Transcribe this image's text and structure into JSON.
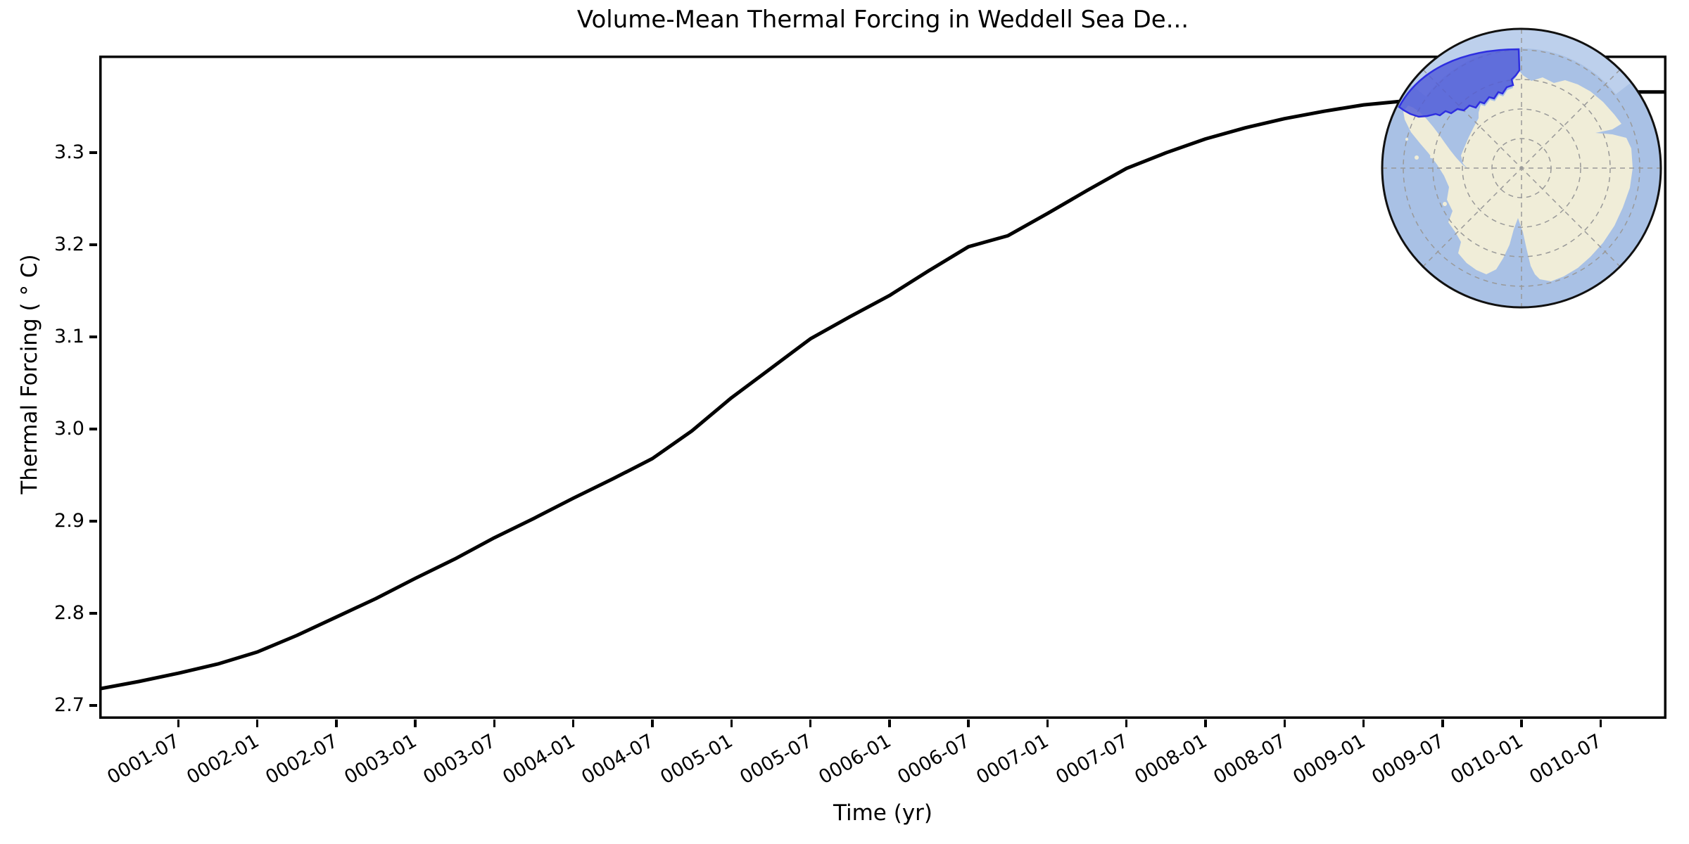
{
  "chart_data": {
    "type": "line",
    "title": "Volume-Mean Thermal Forcing in Weddell Sea De...",
    "xlabel": "Time (yr)",
    "ylabel": "Thermal Forcing ( ° C)",
    "x_tick_labels": [
      "0001-07",
      "0002-01",
      "0002-07",
      "0003-01",
      "0003-07",
      "0004-01",
      "0004-07",
      "0005-01",
      "0005-07",
      "0006-01",
      "0006-07",
      "0007-01",
      "0007-07",
      "0008-01",
      "0008-07",
      "0009-01",
      "0009-07",
      "0010-01",
      "0010-07"
    ],
    "y_tick_labels": [
      "2.7",
      "2.8",
      "2.9",
      "3.0",
      "3.1",
      "3.2",
      "3.3"
    ],
    "ylim": [
      2.6855,
      3.4055
    ],
    "x_total_months": 119,
    "grid": false,
    "legend": "none",
    "line_color": "#000000",
    "line_width": 5,
    "series": [
      {
        "name": "volume-mean thermal forcing",
        "points": [
          [
            "0001-01",
            2.718
          ],
          [
            "0001-04",
            2.726
          ],
          [
            "0001-07",
            2.735
          ],
          [
            "0001-10",
            2.745
          ],
          [
            "0002-01",
            2.758
          ],
          [
            "0002-04",
            2.776
          ],
          [
            "0002-07",
            2.796
          ],
          [
            "0002-10",
            2.816
          ],
          [
            "0003-01",
            2.838
          ],
          [
            "0003-04",
            2.859
          ],
          [
            "0003-07",
            2.882
          ],
          [
            "0003-10",
            2.903
          ],
          [
            "0004-01",
            2.925
          ],
          [
            "0004-04",
            2.946
          ],
          [
            "0004-07",
            2.968
          ],
          [
            "0004-10",
            2.998
          ],
          [
            "0005-01",
            3.034
          ],
          [
            "0005-04",
            3.066
          ],
          [
            "0005-07",
            3.098
          ],
          [
            "0005-10",
            3.122
          ],
          [
            "0006-01",
            3.145
          ],
          [
            "0006-04",
            3.172
          ],
          [
            "0006-07",
            3.198
          ],
          [
            "0006-10",
            3.21
          ],
          [
            "0007-01",
            3.234
          ],
          [
            "0007-04",
            3.259
          ],
          [
            "0007-07",
            3.283
          ],
          [
            "0007-10",
            3.3
          ],
          [
            "0008-01",
            3.315
          ],
          [
            "0008-04",
            3.327
          ],
          [
            "0008-07",
            3.337
          ],
          [
            "0008-10",
            3.345
          ],
          [
            "0009-01",
            3.352
          ],
          [
            "0009-04",
            3.356
          ],
          [
            "0009-07",
            3.359
          ],
          [
            "0009-10",
            3.361
          ],
          [
            "0010-01",
            3.363
          ],
          [
            "0010-04",
            3.364
          ],
          [
            "0010-07",
            3.365
          ],
          [
            "0010-10",
            3.366
          ],
          [
            "0010-12",
            3.366
          ]
        ]
      }
    ]
  },
  "inset_map": {
    "description": "South polar stereographic map of Antarctica with highlighted Weddell Sea deep-ocean region",
    "highlight_region": "Weddell Sea sector",
    "colors": {
      "ocean": "#a9c1e5",
      "ocean_outer": "#bdd0ec",
      "land": "#f0edd8",
      "coastline": "#8f8f8f",
      "region_fill": "#4d59d8",
      "region_border": "#2e2ee0",
      "graticule": "#999999",
      "rim": "#111111"
    }
  }
}
